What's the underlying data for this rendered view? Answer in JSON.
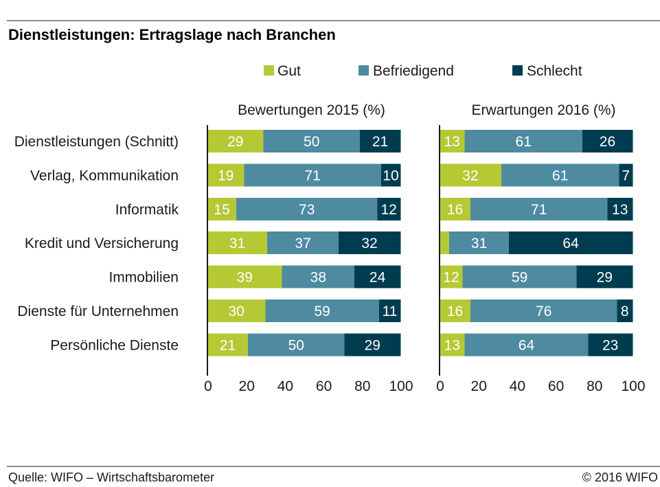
{
  "title": "Dienstleistungen: Ertragslage nach Branchen",
  "source": "Quelle: WIFO – Wirtschaftsbarometer",
  "copyright": "© 2016 WIFO",
  "chart_data": {
    "type": "bar",
    "orientation": "horizontal",
    "stacked": true,
    "legend_position": "top",
    "grid": false,
    "categories": [
      "Dienstleistungen (Schnitt)",
      "Verlag, Kommunikation",
      "Informatik",
      "Kredit und Versicherung",
      "Immobilien",
      "Dienste für Unternehmen",
      "Persönliche Dienste"
    ],
    "series": [
      {
        "name": "Gut",
        "color": "#b5c935"
      },
      {
        "name": "Befriedigend",
        "color": "#4e8ba1"
      },
      {
        "name": "Schlecht",
        "color": "#003c50"
      }
    ],
    "panels": [
      {
        "title": "Bewertungen 2015 (%)",
        "xlim": [
          0,
          100
        ],
        "xticks": [
          0,
          20,
          40,
          60,
          80,
          100
        ],
        "values": [
          [
            29,
            19,
            15,
            31,
            39,
            30,
            21
          ],
          [
            50,
            71,
            73,
            37,
            38,
            59,
            50
          ],
          [
            21,
            10,
            12,
            32,
            24,
            11,
            29
          ]
        ]
      },
      {
        "title": "Erwartungen 2016 (%)",
        "xlim": [
          0,
          100
        ],
        "xticks": [
          0,
          20,
          40,
          60,
          80,
          100
        ],
        "values": [
          [
            13,
            32,
            16,
            5,
            12,
            16,
            13
          ],
          [
            61,
            61,
            71,
            31,
            59,
            76,
            64
          ],
          [
            26,
            7,
            13,
            64,
            29,
            8,
            23
          ]
        ]
      }
    ]
  }
}
